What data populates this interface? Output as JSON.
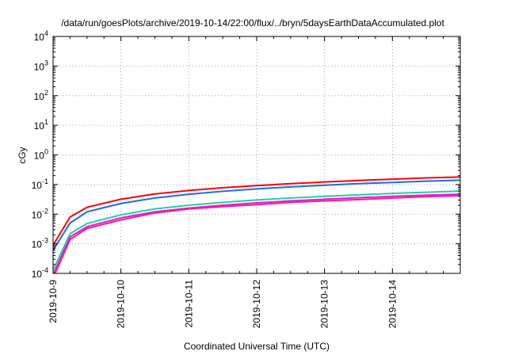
{
  "chart_data": {
    "type": "line",
    "title": "/data/run/goesPlots/archive/2019-10-14/22:00/flux/../bryn/5daysEarthDataAccumulated.plot",
    "xlabel": "Coordinated Universal Time (UTC)",
    "ylabel": "cGy",
    "y_scale": "log",
    "ylim": [
      0.0001,
      10000
    ],
    "xlim": [
      "2019-10-09T00:00",
      "2019-10-15T00:00"
    ],
    "x_ticks": [
      "2019-10-9",
      "2019-10-10",
      "2019-10-11",
      "2019-10-12",
      "2019-10-13",
      "2019-10-14"
    ],
    "y_ticks": [
      {
        "value": 0.0001,
        "base": "10",
        "exp": "-4"
      },
      {
        "value": 0.001,
        "base": "10",
        "exp": "-3"
      },
      {
        "value": 0.01,
        "base": "10",
        "exp": "-2"
      },
      {
        "value": 0.1,
        "base": "10",
        "exp": "-1"
      },
      {
        "value": 1,
        "base": "10",
        "exp": "0"
      },
      {
        "value": 10,
        "base": "10",
        "exp": "1"
      },
      {
        "value": 100,
        "base": "10",
        "exp": "2"
      },
      {
        "value": 1000,
        "base": "10",
        "exp": "3"
      },
      {
        "value": 10000,
        "base": "10",
        "exp": "4"
      }
    ],
    "grid": true,
    "x": [
      "2019-10-09T00:00",
      "2019-10-09T06:00",
      "2019-10-09T12:00",
      "2019-10-10T00:00",
      "2019-10-10T12:00",
      "2019-10-11T00:00",
      "2019-10-11T12:00",
      "2019-10-12T00:00",
      "2019-10-12T12:00",
      "2019-10-13T00:00",
      "2019-10-13T12:00",
      "2019-10-14T00:00",
      "2019-10-14T12:00",
      "2019-10-15T00:00"
    ],
    "series": [
      {
        "color": "#ff0000",
        "values": [
          0.0009,
          0.008,
          0.017,
          0.032,
          0.048,
          0.063,
          0.078,
          0.092,
          0.107,
          0.122,
          0.137,
          0.152,
          0.167,
          0.18
        ]
      },
      {
        "color": "#1e6ae8",
        "values": [
          0.0006,
          0.005,
          0.012,
          0.023,
          0.035,
          0.047,
          0.059,
          0.071,
          0.083,
          0.095,
          0.107,
          0.118,
          0.13,
          0.14
        ]
      },
      {
        "color": "#1dd3a0",
        "values": [
          0.00013,
          0.0022,
          0.0048,
          0.0095,
          0.015,
          0.02,
          0.025,
          0.03,
          0.035,
          0.04,
          0.045,
          0.05,
          0.055,
          0.06
        ]
      },
      {
        "color": "#e01ed8",
        "values": [
          9e-05,
          0.0017,
          0.0038,
          0.0075,
          0.012,
          0.016,
          0.02,
          0.024,
          0.028,
          0.032,
          0.036,
          0.04,
          0.044,
          0.047
        ]
      },
      {
        "color": "#ff1a8c",
        "values": [
          7e-05,
          0.0014,
          0.0033,
          0.0064,
          0.011,
          0.015,
          0.018,
          0.021,
          0.025,
          0.028,
          0.031,
          0.035,
          0.039,
          0.042
        ]
      }
    ]
  }
}
